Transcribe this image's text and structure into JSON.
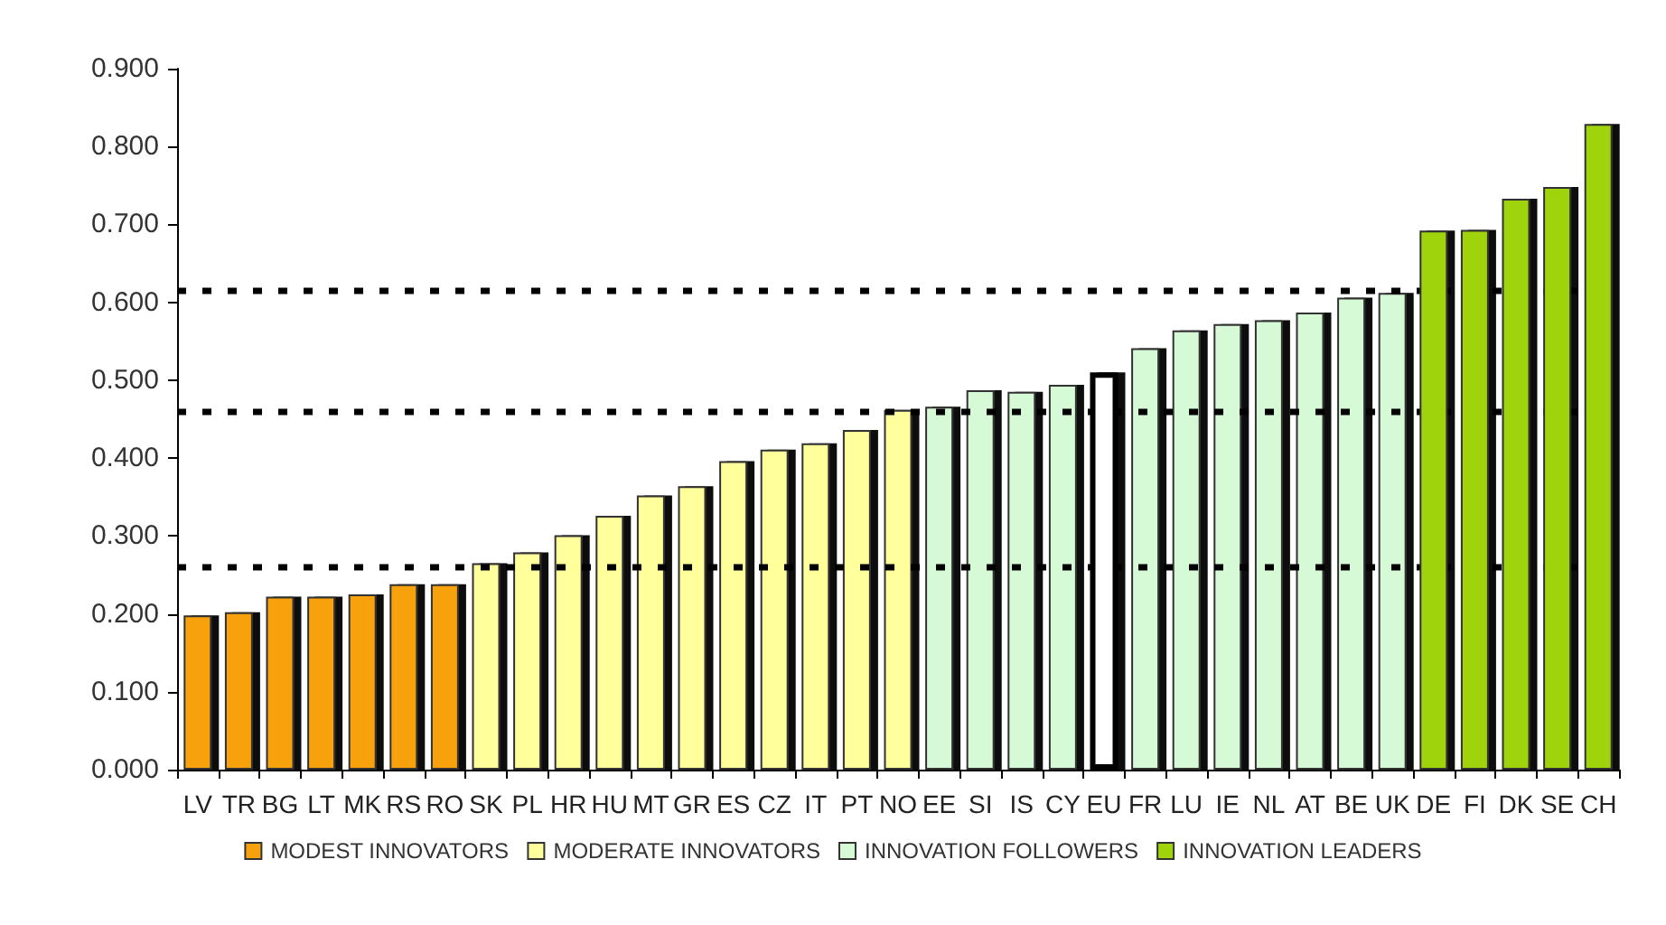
{
  "chart_data": {
    "type": "bar",
    "categories": [
      "LV",
      "TR",
      "BG",
      "LT",
      "MK",
      "RS",
      "RO",
      "SK",
      "PL",
      "HR",
      "HU",
      "MT",
      "GR",
      "ES",
      "CZ",
      "IT",
      "PT",
      "NO",
      "EE",
      "SI",
      "IS",
      "CY",
      "EU",
      "FR",
      "LU",
      "IE",
      "NL",
      "AT",
      "BE",
      "UK",
      "DE",
      "FI",
      "DK",
      "SE",
      "CH"
    ],
    "series": [
      {
        "name": "MODEST INNOVATORS",
        "color": "#f7a10f",
        "values": [
          0.198,
          0.202,
          0.222,
          0.222,
          0.225,
          0.238,
          0.238,
          null,
          null,
          null,
          null,
          null,
          null,
          null,
          null,
          null,
          null,
          null,
          null,
          null,
          null,
          null,
          null,
          null,
          null,
          null,
          null,
          null,
          null,
          null,
          null,
          null,
          null,
          null,
          null
        ]
      },
      {
        "name": "MODERATE INNOVATORS",
        "color": "#ffff9c",
        "values": [
          null,
          null,
          null,
          null,
          null,
          null,
          null,
          0.265,
          0.279,
          0.301,
          0.326,
          0.352,
          0.364,
          0.396,
          0.411,
          0.419,
          0.436,
          0.462,
          null,
          null,
          null,
          null,
          null,
          null,
          null,
          null,
          null,
          null,
          null,
          null,
          null,
          null,
          null,
          null,
          null
        ]
      },
      {
        "name": "INNOVATION FOLLOWERS",
        "color": "#d6fad6",
        "values": [
          null,
          null,
          null,
          null,
          null,
          null,
          null,
          null,
          null,
          null,
          null,
          null,
          null,
          null,
          null,
          null,
          null,
          null,
          0.466,
          0.487,
          0.485,
          0.494,
          null,
          0.541,
          0.564,
          0.572,
          0.577,
          0.587,
          0.606,
          0.612,
          null,
          null,
          null,
          null,
          null
        ]
      },
      {
        "color": "#ffffff",
        "values": [
          null,
          null,
          null,
          null,
          null,
          null,
          null,
          null,
          null,
          null,
          null,
          null,
          null,
          null,
          null,
          null,
          null,
          null,
          null,
          null,
          null,
          null,
          0.51,
          null,
          null,
          null,
          null,
          null,
          null,
          null,
          null,
          null,
          null,
          null,
          null
        ]
      },
      {
        "name": "INNOVATION LEADERS",
        "color": "#9fd40a",
        "values": [
          null,
          null,
          null,
          null,
          null,
          null,
          null,
          null,
          null,
          null,
          null,
          null,
          null,
          null,
          null,
          null,
          null,
          null,
          null,
          null,
          null,
          null,
          null,
          null,
          null,
          null,
          null,
          null,
          null,
          null,
          0.692,
          0.693,
          0.733,
          0.748,
          0.829
        ]
      }
    ],
    "ylim": [
      0,
      0.9
    ],
    "yticks": [
      {
        "value": 0,
        "label": "0.000"
      },
      {
        "value": 0.1,
        "label": "0.100"
      },
      {
        "value": 0.2,
        "label": "0.200"
      },
      {
        "value": 0.3,
        "label": "0.300"
      },
      {
        "value": 0.4,
        "label": "0.400"
      },
      {
        "value": 0.5,
        "label": "0.500"
      },
      {
        "value": 0.6,
        "label": "0.600"
      },
      {
        "value": 0.7,
        "label": "0.700"
      },
      {
        "value": 0.8,
        "label": "0.800"
      },
      {
        "value": 0.9,
        "label": "0.900"
      }
    ],
    "ref_lines": [
      {
        "axis": "y",
        "value": 0.26,
        "color": "#000000",
        "line_style": "dashed"
      },
      {
        "axis": "y",
        "value": 0.46,
        "color": "#000000",
        "line_style": "dashed"
      },
      {
        "axis": "y",
        "value": 0.615,
        "color": "#000000",
        "line_style": "dashed"
      }
    ],
    "grid": false,
    "legend": "bottom"
  }
}
